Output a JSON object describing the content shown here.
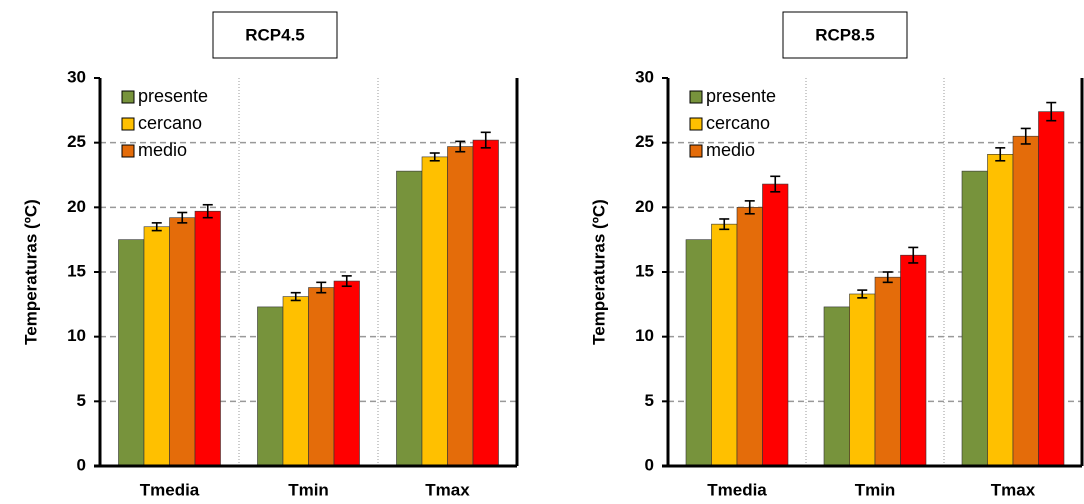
{
  "chart_data": [
    {
      "type": "bar",
      "title": "RCP4.5",
      "ylabel": "Temperaturas (ºC)",
      "categories": [
        "Tmedia",
        "Tmin",
        "Tmax"
      ],
      "series": [
        {
          "name": "presente",
          "color": "#77933c",
          "values": [
            17.5,
            12.3,
            22.8
          ]
        },
        {
          "name": "cercano",
          "color": "#ffc000",
          "values": [
            18.5,
            13.1,
            23.9
          ],
          "errors": [
            0.3,
            0.3,
            0.3
          ]
        },
        {
          "name": "medio",
          "color": "#e46c0a",
          "values": [
            19.2,
            13.8,
            24.7
          ],
          "errors": [
            0.4,
            0.4,
            0.4
          ]
        },
        {
          "color": "#ff0000",
          "values": [
            19.7,
            14.3,
            25.2
          ],
          "errors": [
            0.5,
            0.4,
            0.6
          ]
        }
      ],
      "ylim": [
        0,
        30
      ],
      "yticks": [
        0,
        5,
        10,
        15,
        20,
        25,
        30
      ],
      "grid": true,
      "legend": "upper left"
    },
    {
      "type": "bar",
      "title": "RCP8.5",
      "ylabel": "Temperaturas (ºC)",
      "categories": [
        "Tmedia",
        "Tmin",
        "Tmax"
      ],
      "series": [
        {
          "name": "presente",
          "color": "#77933c",
          "values": [
            17.5,
            12.3,
            22.8
          ]
        },
        {
          "name": "cercano",
          "color": "#ffc000",
          "values": [
            18.7,
            13.3,
            24.1
          ],
          "errors": [
            0.4,
            0.3,
            0.5
          ]
        },
        {
          "name": "medio",
          "color": "#e46c0a",
          "values": [
            20.0,
            14.6,
            25.5
          ],
          "errors": [
            0.5,
            0.4,
            0.6
          ]
        },
        {
          "color": "#ff0000",
          "values": [
            21.8,
            16.3,
            27.4
          ],
          "errors": [
            0.6,
            0.6,
            0.7
          ]
        }
      ],
      "ylim": [
        0,
        30
      ],
      "yticks": [
        0,
        5,
        10,
        15,
        20,
        25,
        30
      ],
      "grid": true,
      "legend": "upper left"
    }
  ]
}
